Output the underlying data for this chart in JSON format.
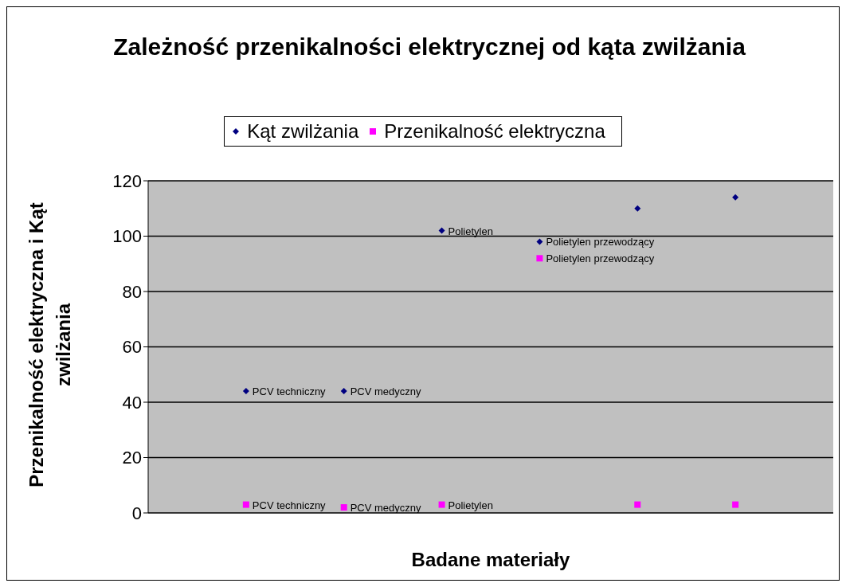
{
  "chart_data": {
    "type": "scatter",
    "title": "Zależność przenikalności elektrycznej od kąta zwilżania",
    "xlabel": "Badane materiały",
    "ylabel": "Przenikalność elektryczna i Kąt zwilżania",
    "categories": [
      "PCV techniczny",
      "PCV medyczny",
      "Polietylen",
      "Polietylen przewodzący",
      null,
      null
    ],
    "series": [
      {
        "name": "Kąt zwilżania",
        "color": "#000080",
        "marker": "diamond",
        "values": [
          44,
          44,
          102,
          98,
          110,
          114
        ]
      },
      {
        "name": "Przenikalność elektryczna",
        "color": "#ff00ff",
        "marker": "square",
        "values": [
          3,
          2,
          3,
          92,
          3,
          3
        ]
      }
    ],
    "ylim": [
      0,
      120
    ],
    "yticks": [
      0,
      20,
      40,
      60,
      80,
      100,
      120
    ],
    "grid": "y",
    "legend": "top",
    "tick_labels": "y"
  }
}
